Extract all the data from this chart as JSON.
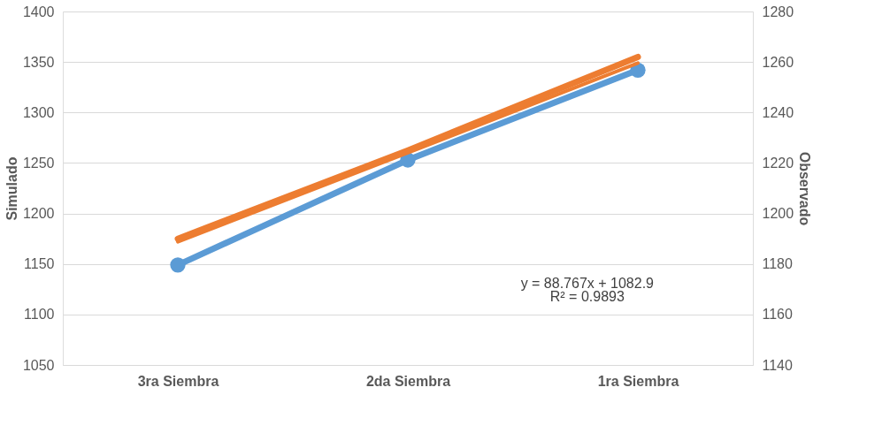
{
  "chart_data": {
    "type": "line",
    "categories": [
      "3ra Siembra",
      "2da Siembra",
      "1ra Siembra"
    ],
    "ylabel": "Simulado",
    "y2label": "Observado",
    "ylim": [
      1050,
      1400
    ],
    "yticks": [
      1050,
      1100,
      1150,
      1200,
      1250,
      1300,
      1350,
      1400
    ],
    "y2lim": [
      1140,
      1280
    ],
    "y2ticks": [
      1140,
      1160,
      1180,
      1200,
      1220,
      1240,
      1260,
      1280
    ],
    "series": [
      {
        "color": "#5b9bd5",
        "values": [
          1149,
          1253,
          1342
        ],
        "marker": "circle",
        "axis": "y"
      },
      {
        "color": "#ed7d31",
        "values": [
          1190,
          1225,
          1262
        ],
        "marker": "none",
        "axis": "y2"
      },
      {
        "color": "#ed7d31",
        "x": [
          "3ra Siembra",
          "2da Siembra",
          "1ra Siembra"
        ],
        "values": [
          1172,
          1260,
          1349
        ],
        "marker": "none",
        "axis": "y"
      }
    ],
    "annotations": [
      "y = 88.767x + 1082.9",
      "R² = 0.9893"
    ],
    "grid": "y"
  }
}
